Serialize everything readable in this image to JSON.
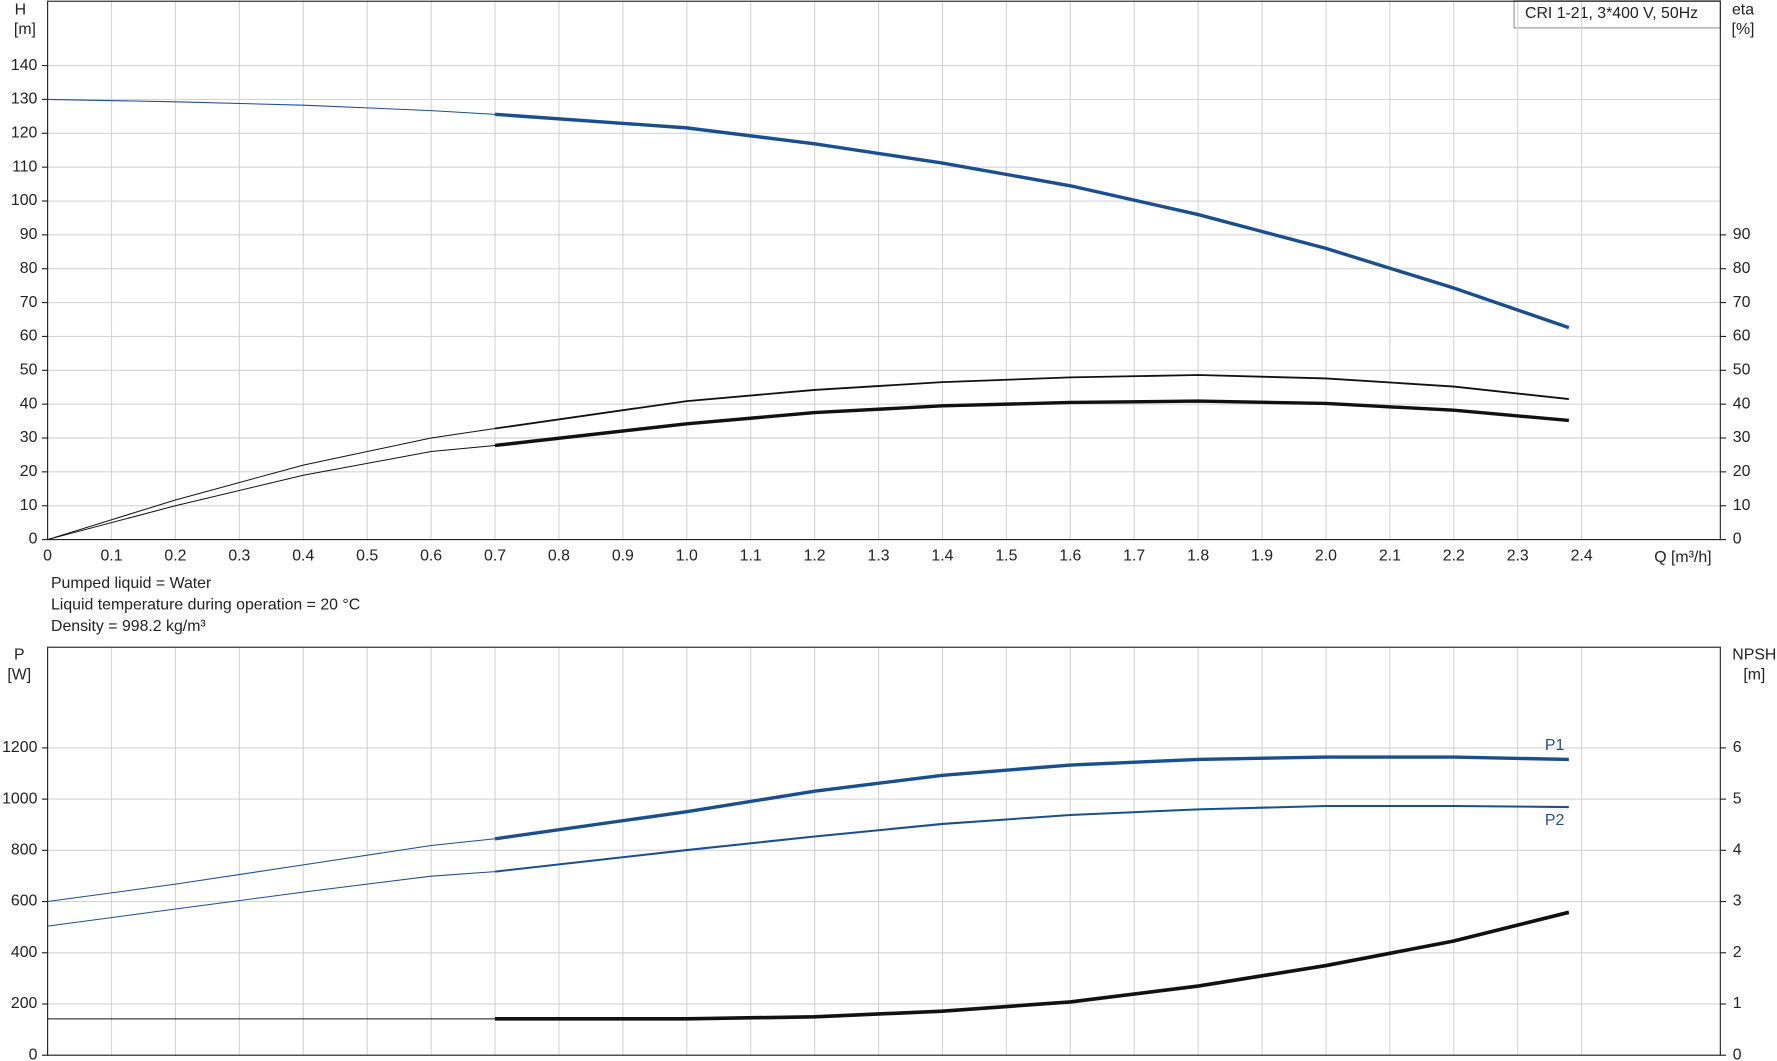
{
  "chart_data": [
    {
      "type": "line",
      "title": "CRI 1-21, 3*400 V, 50Hz",
      "y_label": "H",
      "y_unit": "[m]",
      "y2_label": "eta",
      "y2_unit": "[%]",
      "x_label": "Q [m³/h]",
      "xlim": [
        0,
        2.617
      ],
      "xticks": [
        0,
        0.1,
        0.2,
        0.3,
        0.4,
        0.5,
        0.6,
        0.7,
        0.8,
        0.9,
        {
          "value": 1,
          "label": "1.0"
        },
        1.1,
        1.2,
        1.3,
        1.4,
        1.5,
        1.6,
        1.7,
        1.8,
        1.9,
        {
          "value": 2,
          "label": "2.0"
        },
        2.1,
        2.2,
        2.3,
        2.4
      ],
      "ylim": [
        0,
        159
      ],
      "yticks": [
        0,
        10,
        20,
        30,
        40,
        50,
        60,
        70,
        80,
        90,
        100,
        110,
        120,
        130,
        140
      ],
      "y2lim": [
        0,
        159
      ],
      "y2ticks": [
        0,
        10,
        20,
        30,
        40,
        50,
        60,
        70,
        80,
        90
      ],
      "grid": true,
      "bold_from_x": 0.7,
      "x": [
        0,
        0.2,
        0.4,
        0.6,
        0.7,
        1.0,
        1.2,
        1.4,
        1.6,
        1.8,
        2.0,
        2.2,
        2.38
      ],
      "series": [
        {
          "color": "#1a4f8f",
          "values": [
            130,
            129.3,
            128.3,
            126.7,
            125.6,
            121.6,
            116.9,
            111.2,
            104.5,
            96,
            86,
            74.3,
            62.6
          ]
        },
        {
          "color": "#111111",
          "axis": "y2",
          "values": [
            0,
            11.7,
            22,
            30,
            32.8,
            40.9,
            44.2,
            46.5,
            47.9,
            48.6,
            47.6,
            45.2,
            41.5
          ]
        },
        {
          "color": "#111111",
          "axis": "y2",
          "values": [
            0,
            10,
            19,
            26,
            27.8,
            34.2,
            37.5,
            39.5,
            40.5,
            40.9,
            40.2,
            38.2,
            35.2
          ]
        }
      ],
      "notes": [
        "Pumped liquid = Water",
        "Liquid temperature during operation = 20 °C",
        "Density = 998.2 kg/m³"
      ]
    },
    {
      "type": "line",
      "y_label": "P",
      "y_unit": "[W]",
      "y2_label": "NPSH",
      "y2_unit": "[m]",
      "xlim": [
        0,
        2.617
      ],
      "xticks": [
        0,
        0.1,
        0.2,
        0.3,
        0.4,
        0.5,
        0.6,
        0.7,
        0.8,
        0.9,
        1,
        1.1,
        1.2,
        1.3,
        1.4,
        1.5,
        1.6,
        1.7,
        1.8,
        1.9,
        2,
        2.1,
        2.2,
        2.3,
        2.4
      ],
      "x_tick_labels": false,
      "ylim": [
        0,
        1593
      ],
      "yticks": [
        0,
        200,
        400,
        600,
        800,
        1000,
        1200
      ],
      "y2lim": [
        0,
        7.965
      ],
      "y2ticks": [
        0,
        1,
        2,
        3,
        4,
        5,
        6
      ],
      "grid": true,
      "bold_from_x": 0.7,
      "x": [
        0,
        0.2,
        0.4,
        0.6,
        0.7,
        1.0,
        1.2,
        1.4,
        1.6,
        1.8,
        2.0,
        2.2,
        2.38
      ],
      "series": [
        {
          "name": "P1",
          "color": "#1a4f8f",
          "values": [
            600,
            668,
            743,
            819,
            845,
            951,
            1031,
            1093,
            1133,
            1155,
            1164,
            1164,
            1155
          ]
        },
        {
          "name": "P2",
          "color": "#1a4f8f",
          "values": [
            504,
            571,
            637,
            699,
            717,
            801,
            854,
            903,
            938,
            960,
            973,
            973,
            969
          ]
        },
        {
          "color": "#111111",
          "axis": "y2",
          "values": [
            0.71,
            0.71,
            0.71,
            0.71,
            0.71,
            0.71,
            0.75,
            0.86,
            1.04,
            1.35,
            1.75,
            2.23,
            2.79
          ]
        }
      ]
    }
  ]
}
